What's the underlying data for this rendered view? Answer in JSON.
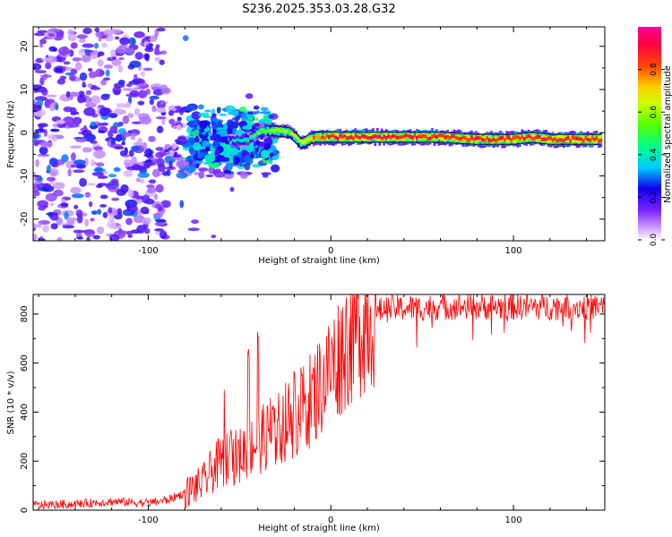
{
  "figure": {
    "title": "S236.2025.353.03.28.G32"
  },
  "chart_data": [
    {
      "type": "heatmap",
      "title": "S236.2025.353.03.28.G32",
      "xlabel": "Height of straight line (km)",
      "ylabel": "Frequency (Hz)",
      "xlim": [
        -163,
        150
      ],
      "ylim": [
        -25,
        24.5
      ],
      "xticks": [
        -100,
        0,
        100
      ],
      "yticks": [
        20,
        10,
        0,
        -10,
        -20
      ],
      "colorbar": {
        "label": "Normalized spectral amplitude",
        "range": [
          0,
          1
        ],
        "ticks": [
          0.0,
          0.2,
          0.4,
          0.6,
          0.8
        ],
        "colormap": [
          "#ffffff",
          "#9966ff",
          "#2200ee",
          "#00ccff",
          "#00ff66",
          "#aaff00",
          "#ffcc00",
          "#ff4400",
          "#ff0066",
          "#ff0099"
        ]
      },
      "ridge": {
        "description": "dominant frequency track vs height",
        "x": [
          -55,
          -45,
          -38,
          -30,
          -22,
          -16,
          -12,
          -8,
          -4,
          0,
          20,
          40,
          60,
          80,
          90,
          100,
          110,
          120,
          130,
          140,
          148
        ],
        "f": [
          -2,
          -1.5,
          0.5,
          0.5,
          0,
          -2.5,
          -1.5,
          -1,
          -1,
          -1,
          -1,
          -1,
          -1,
          -1.5,
          -1.5,
          -1.5,
          -1,
          -1.5,
          -1.5,
          -1.5,
          -1.5
        ],
        "amp": [
          0.35,
          0.45,
          0.55,
          0.65,
          0.6,
          0.7,
          0.75,
          0.8,
          0.85,
          0.9,
          0.92,
          0.9,
          0.9,
          0.88,
          0.9,
          0.88,
          0.9,
          0.9,
          0.92,
          0.9,
          0.9
        ]
      },
      "scatter_region": {
        "x_range": [
          -163,
          -30
        ],
        "f_range": [
          -25,
          24
        ],
        "amplitude": "low (0.05-0.35), increasing toward x=-40"
      }
    },
    {
      "type": "line",
      "xlabel": "Height of straight line (km)",
      "ylabel": "SNR (10 * v/v)",
      "xlim": [
        -163,
        150
      ],
      "ylim": [
        0,
        880
      ],
      "xticks": [
        -100,
        0,
        100
      ],
      "yticks": [
        0,
        200,
        400,
        600,
        800
      ],
      "series": [
        {
          "name": "SNR",
          "color": "#ff0000",
          "x": [
            -163,
            -140,
            -120,
            -100,
            -90,
            -80,
            -70,
            -65,
            -60,
            -55,
            -50,
            -45,
            -40,
            -35,
            -30,
            -25,
            -20,
            -15,
            -10,
            -5,
            0,
            5,
            10,
            15,
            20,
            25,
            30,
            40,
            50,
            60,
            80,
            100,
            120,
            140,
            150
          ],
          "y": [
            20,
            25,
            35,
            30,
            40,
            70,
            110,
            160,
            200,
            210,
            220,
            260,
            280,
            300,
            320,
            360,
            380,
            420,
            460,
            520,
            580,
            640,
            700,
            750,
            790,
            810,
            820,
            825,
            825,
            830,
            830,
            830,
            830,
            830,
            830
          ]
        }
      ]
    }
  ]
}
